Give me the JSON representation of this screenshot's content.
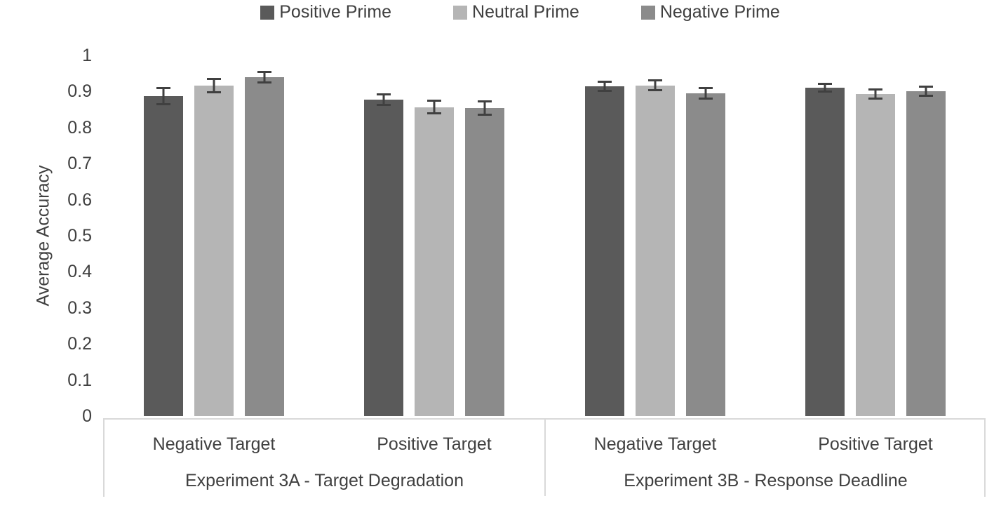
{
  "chart_data": {
    "type": "bar",
    "title": "",
    "ylabel": "Average Accuracy",
    "ylim": [
      0,
      1
    ],
    "yticks": [
      "0",
      "0.1",
      "0.2",
      "0.3",
      "0.4",
      "0.5",
      "0.6",
      "0.7",
      "0.8",
      "0.9",
      "1"
    ],
    "grid": false,
    "legend_position": "top",
    "categories": [
      "Negative Target",
      "Positive Target",
      "Negative Target",
      "Positive Target"
    ],
    "group_labels": [
      "Experiment 3A - Target Degradation",
      "Experiment 3B - Response Deadline"
    ],
    "series": [
      {
        "name": "Positive Prime",
        "color": "#5a5a5a",
        "values": [
          0.887,
          0.877,
          0.914,
          0.911
        ],
        "errors": [
          0.025,
          0.018,
          0.015,
          0.014
        ]
      },
      {
        "name": "Neutral Prime",
        "color": "#b5b5b5",
        "values": [
          0.916,
          0.857,
          0.917,
          0.893
        ],
        "errors": [
          0.021,
          0.02,
          0.016,
          0.015
        ]
      },
      {
        "name": "Negative Prime",
        "color": "#8b8b8b",
        "values": [
          0.94,
          0.854,
          0.895,
          0.901
        ],
        "errors": [
          0.017,
          0.022,
          0.018,
          0.016
        ]
      }
    ],
    "error_bar_color": "#404040",
    "axis_line_color": "#d9d9d9",
    "text_color": "#404040"
  }
}
